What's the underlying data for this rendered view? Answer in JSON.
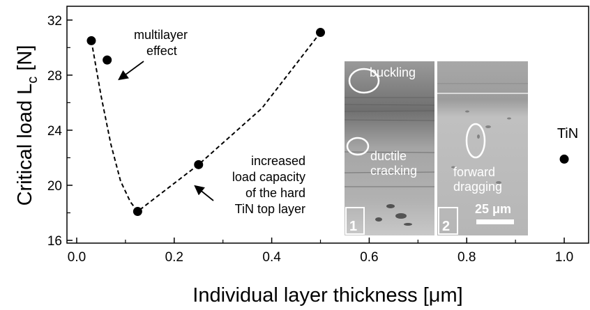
{
  "chart_data": {
    "type": "scatter",
    "xlabel": "Individual layer thickness [μm]",
    "ylabel_main": "Critical load L",
    "ylabel_sub": "c",
    "ylabel_unit": " [N]",
    "xlim": [
      -0.02,
      1.05
    ],
    "ylim": [
      15.8,
      33.0
    ],
    "x_ticks": [
      0.0,
      0.2,
      0.4,
      0.6,
      0.8,
      1.0
    ],
    "x_tick_labels": [
      "0.0",
      "0.2",
      "0.4",
      "0.6",
      "0.8",
      "1.0"
    ],
    "y_ticks": [
      16,
      20,
      24,
      28,
      32
    ],
    "y_tick_labels": [
      "16",
      "20",
      "24",
      "28",
      "32"
    ],
    "points": [
      {
        "x": 0.03,
        "y": 30.5
      },
      {
        "x": 0.0625,
        "y": 29.1
      },
      {
        "x": 0.125,
        "y": 18.1
      },
      {
        "x": 0.25,
        "y": 21.5
      },
      {
        "x": 0.5,
        "y": 31.1
      },
      {
        "x": 1.0,
        "y": 21.9,
        "label": "TiN"
      }
    ],
    "trend_line": [
      {
        "x": 0.03,
        "y": 30.5
      },
      {
        "x": 0.05,
        "y": 26.5
      },
      {
        "x": 0.07,
        "y": 23.0
      },
      {
        "x": 0.09,
        "y": 20.3
      },
      {
        "x": 0.11,
        "y": 18.8
      },
      {
        "x": 0.125,
        "y": 18.1
      },
      {
        "x": 0.25,
        "y": 21.5
      },
      {
        "x": 0.38,
        "y": 25.6
      },
      {
        "x": 0.5,
        "y": 31.1
      }
    ],
    "annotations": {
      "multilayer": [
        "multilayer",
        "effect"
      ],
      "increased": [
        "increased",
        "load capacity",
        "of the hard",
        "TiN top layer"
      ]
    },
    "inset": {
      "panel1_labels": {
        "buckling": "buckling",
        "ductile": "ductile",
        "cracking": "cracking",
        "number": "1"
      },
      "panel2_labels": {
        "forward": "forward",
        "dragging": "dragging",
        "number": "2",
        "scale": "25 μm"
      }
    }
  }
}
